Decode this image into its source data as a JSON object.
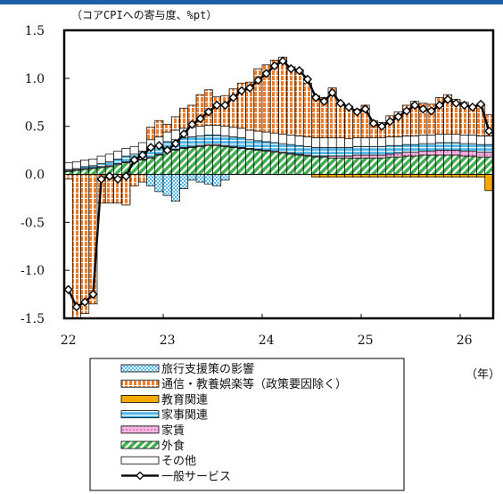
{
  "chart_data": {
    "type": "bar",
    "stacked": true,
    "title": "",
    "ylabel": "（コアCPIへの寄与度、%pt）",
    "xlabel": "（年）",
    "ylim": [
      -1.5,
      1.5
    ],
    "yticks": [
      "1.5",
      "1.0",
      "0.5",
      "0.0",
      "-0.5",
      "-1.0",
      "-1.5"
    ],
    "xticks": [
      "22",
      "23",
      "24",
      "25",
      "26"
    ],
    "x_start": "2022-01",
    "x_end": "2026-04",
    "series": [
      {
        "name": "旅行支援策の影響",
        "color": "#4db8e8",
        "values": [
          0,
          0,
          0,
          0,
          0,
          0,
          0,
          0,
          0,
          0,
          -0.12,
          -0.18,
          -0.22,
          -0.28,
          -0.15,
          -0.06,
          -0.08,
          -0.1,
          -0.12,
          -0.06,
          0,
          0,
          0,
          0,
          0,
          0,
          0,
          0,
          0,
          0,
          0,
          0,
          0,
          0,
          0,
          0,
          0,
          0,
          0,
          0,
          0,
          0,
          0,
          0,
          0,
          0,
          0,
          0,
          0,
          0,
          0,
          0
        ]
      },
      {
        "name": "通信・教養娯楽等（政策要因除く）",
        "color": "#f07c28",
        "values": [
          -0.05,
          -1.5,
          -1.45,
          -1.35,
          -0.3,
          -0.3,
          -0.3,
          -0.32,
          -0.12,
          -0.08,
          0.13,
          0.17,
          0.08,
          0.14,
          0.21,
          0.23,
          0.33,
          0.37,
          0.3,
          0.32,
          0.4,
          0.47,
          0.5,
          0.65,
          0.7,
          0.76,
          0.8,
          0.71,
          0.69,
          0.56,
          0.44,
          0.42,
          0.52,
          0.36,
          0.34,
          0.3,
          0.34,
          0.18,
          0.16,
          0.22,
          0.26,
          0.32,
          0.36,
          0.33,
          0.32,
          0.38,
          0.41,
          0.36,
          0.34,
          0.3,
          0.32,
          0.22
        ]
      },
      {
        "name": "教育関連",
        "color": "#f5a800",
        "values": [
          0,
          0,
          0,
          0,
          0,
          0,
          0,
          0,
          0,
          0,
          0,
          0,
          0,
          0,
          0,
          0,
          0,
          0,
          0,
          0,
          0,
          0,
          0,
          0,
          0,
          0,
          0,
          0,
          0,
          0,
          -0.03,
          -0.03,
          -0.03,
          -0.03,
          -0.03,
          -0.03,
          -0.03,
          -0.03,
          -0.03,
          -0.03,
          -0.03,
          -0.03,
          -0.03,
          -0.03,
          -0.03,
          -0.03,
          -0.03,
          -0.03,
          -0.03,
          -0.03,
          -0.03,
          -0.17
        ]
      },
      {
        "name": "家事関連",
        "color": "#4db8e8",
        "values": [
          0.01,
          0.01,
          0.02,
          0.02,
          0.03,
          0.04,
          0.05,
          0.06,
          0.07,
          0.08,
          0.09,
          0.09,
          0.1,
          0.1,
          0.1,
          0.1,
          0.1,
          0.1,
          0.1,
          0.1,
          0.1,
          0.1,
          0.09,
          0.09,
          0.09,
          0.09,
          0.09,
          0.09,
          0.09,
          0.09,
          0.09,
          0.09,
          0.09,
          0.09,
          0.09,
          0.09,
          0.09,
          0.09,
          0.09,
          0.09,
          0.08,
          0.08,
          0.08,
          0.08,
          0.08,
          0.08,
          0.08,
          0.08,
          0.08,
          0.08,
          0.08,
          0.08
        ]
      },
      {
        "name": "家賃",
        "color": "#f08ccc",
        "values": [
          0.01,
          0.01,
          0.01,
          0.01,
          0.01,
          0.01,
          0.01,
          0.01,
          0.01,
          0.01,
          0.01,
          0.01,
          0.01,
          0.01,
          0.01,
          0.01,
          0.01,
          0.01,
          0.01,
          0.01,
          0.01,
          0.01,
          0.01,
          0.01,
          0.01,
          0.01,
          0.01,
          0.01,
          0.01,
          0.01,
          0.01,
          0.01,
          0.02,
          0.02,
          0.02,
          0.03,
          0.03,
          0.03,
          0.03,
          0.03,
          0.04,
          0.04,
          0.04,
          0.04,
          0.04,
          0.05,
          0.05,
          0.05,
          0.05,
          0.05,
          0.05,
          0.05
        ]
      },
      {
        "name": "外食",
        "color": "#3cb04a",
        "values": [
          0.03,
          0.04,
          0.05,
          0.06,
          0.07,
          0.08,
          0.1,
          0.12,
          0.13,
          0.15,
          0.17,
          0.2,
          0.23,
          0.25,
          0.27,
          0.28,
          0.29,
          0.3,
          0.3,
          0.29,
          0.28,
          0.27,
          0.26,
          0.25,
          0.24,
          0.23,
          0.22,
          0.21,
          0.2,
          0.19,
          0.18,
          0.18,
          0.17,
          0.17,
          0.17,
          0.17,
          0.17,
          0.17,
          0.17,
          0.18,
          0.18,
          0.19,
          0.19,
          0.2,
          0.2,
          0.2,
          0.2,
          0.2,
          0.19,
          0.19,
          0.18,
          0.18
        ]
      },
      {
        "name": "その他",
        "color": "#ffffff",
        "values": [
          0.07,
          0.07,
          0.07,
          0.07,
          0.08,
          0.08,
          0.08,
          0.08,
          0.08,
          0.09,
          0.09,
          0.09,
          0.1,
          0.1,
          0.1,
          0.1,
          0.1,
          0.1,
          0.1,
          0.1,
          0.1,
          0.1,
          0.1,
          0.1,
          0.1,
          0.1,
          0.1,
          0.1,
          0.1,
          0.1,
          0.1,
          0.1,
          0.1,
          0.1,
          0.09,
          0.09,
          0.09,
          0.09,
          0.09,
          0.09,
          0.09,
          0.09,
          0.09,
          0.09,
          0.09,
          0.09,
          0.09,
          0.09,
          0.09,
          0.09,
          0.09,
          0.09
        ]
      }
    ],
    "line": {
      "name": "一般サービス",
      "values": [
        -1.2,
        -1.38,
        -1.33,
        -1.25,
        -0.05,
        -0.02,
        -0.05,
        -0.02,
        0.15,
        0.2,
        0.28,
        0.3,
        0.25,
        0.32,
        0.42,
        0.52,
        0.58,
        0.65,
        0.72,
        0.72,
        0.8,
        0.87,
        0.9,
        0.98,
        1.05,
        1.13,
        1.18,
        1.1,
        1.08,
        0.99,
        0.8,
        0.76,
        0.85,
        0.74,
        0.7,
        0.65,
        0.68,
        0.53,
        0.5,
        0.55,
        0.6,
        0.66,
        0.72,
        0.68,
        0.66,
        0.72,
        0.78,
        0.74,
        0.72,
        0.7,
        0.73,
        0.45
      ]
    }
  }
}
